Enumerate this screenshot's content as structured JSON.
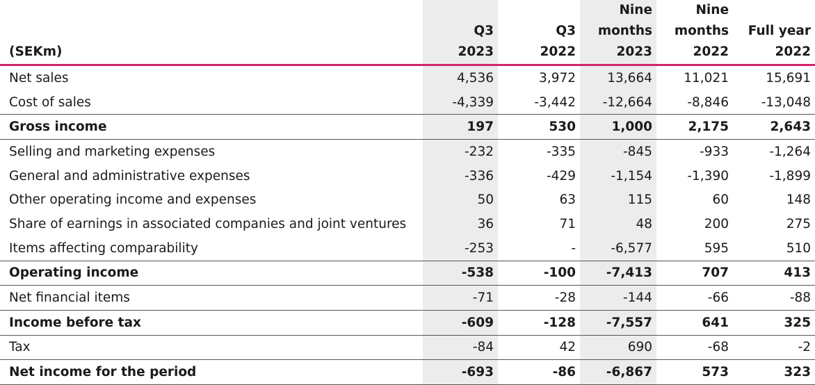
{
  "table": {
    "unit_label": "(SEKm)",
    "columns": [
      [
        "Q3",
        "2023"
      ],
      [
        "Q3",
        "2022"
      ],
      [
        "Nine",
        "months",
        "2023"
      ],
      [
        "Nine",
        "months",
        "2022"
      ],
      [
        "Full year",
        "2022"
      ]
    ],
    "rows": [
      {
        "label": "Net sales",
        "values": [
          "4,536",
          "3,972",
          "13,664",
          "11,021",
          "15,691"
        ]
      },
      {
        "label": "Cost of sales",
        "values": [
          "-4,339",
          "-3,442",
          "-12,664",
          "-8,846",
          "-13,048"
        ]
      },
      {
        "label": "Gross income",
        "values": [
          "197",
          "530",
          "1,000",
          "2,175",
          "2,643"
        ]
      },
      {
        "label": "Selling and marketing expenses",
        "values": [
          "-232",
          "-335",
          "-845",
          "-933",
          "-1,264"
        ]
      },
      {
        "label": "General and administrative expenses",
        "values": [
          "-336",
          "-429",
          "-1,154",
          "-1,390",
          "-1,899"
        ]
      },
      {
        "label": "Other operating income and expenses",
        "values": [
          "50",
          "63",
          "115",
          "60",
          "148"
        ]
      },
      {
        "label": "Share of earnings in associated companies and joint ventures",
        "values": [
          "36",
          "71",
          "48",
          "200",
          "275"
        ]
      },
      {
        "label": "Items affecting comparability",
        "values": [
          "-253",
          "-",
          "-6,577",
          "595",
          "510"
        ]
      },
      {
        "label": "Operating income",
        "values": [
          "-538",
          "-100",
          "-7,413",
          "707",
          "413"
        ]
      },
      {
        "label": "Net financial items",
        "values": [
          "-71",
          "-28",
          "-144",
          "-66",
          "-88"
        ]
      },
      {
        "label": "Income before tax",
        "values": [
          "-609",
          "-128",
          "-7,557",
          "641",
          "325"
        ]
      },
      {
        "label": "Tax",
        "values": [
          "-84",
          "42",
          "690",
          "-68",
          "-2"
        ]
      },
      {
        "label": "Net income for the period",
        "values": [
          "-693",
          "-86",
          "-6,867",
          "573",
          "323"
        ]
      }
    ]
  }
}
